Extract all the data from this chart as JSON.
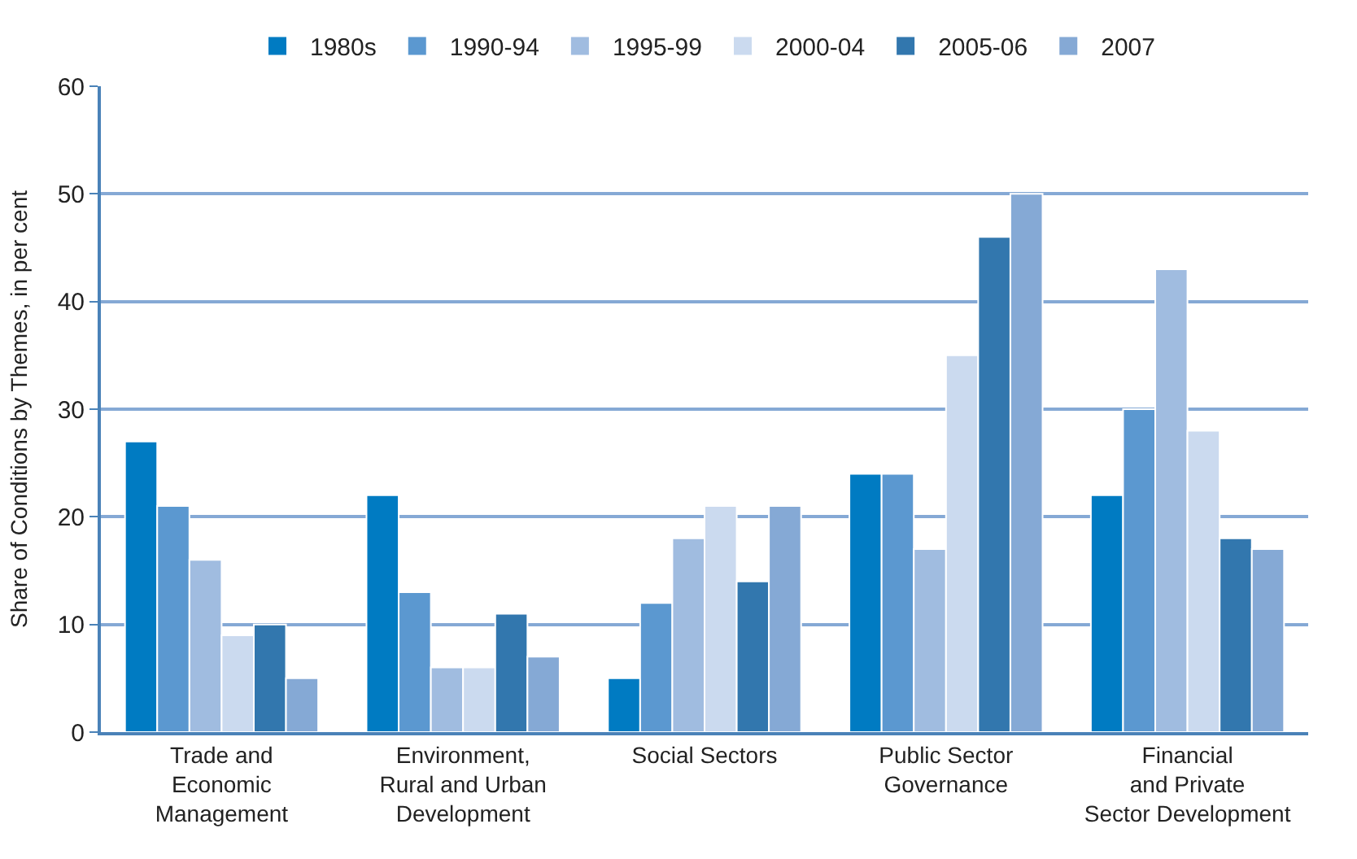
{
  "chart_data": {
    "type": "bar",
    "ylabel": "Share of Conditions by Themes, in per cent",
    "categories": [
      "Trade and\nEconomic\nManagement",
      "Environment,\nRural and Urban\nDevelopment",
      "Social Sectors",
      "Public Sector\nGovernance",
      "Financial\nand Private\nSector Development"
    ],
    "series": [
      {
        "name": "1980s",
        "color": "#007bc2",
        "values": [
          27,
          22,
          5,
          24,
          22
        ]
      },
      {
        "name": "1990-94",
        "color": "#5b98d0",
        "values": [
          21,
          13,
          12,
          24,
          30
        ]
      },
      {
        "name": "1995-99",
        "color": "#a0bce0",
        "values": [
          16,
          6,
          18,
          17,
          43
        ]
      },
      {
        "name": "2000-04",
        "color": "#cbdaef",
        "values": [
          9,
          6,
          21,
          35,
          28
        ]
      },
      {
        "name": "2005-06",
        "color": "#3277ae",
        "values": [
          10,
          11,
          14,
          46,
          18
        ]
      },
      {
        "name": "2007",
        "color": "#85a9d5",
        "values": [
          5,
          7,
          21,
          50,
          17
        ]
      }
    ],
    "ylim": [
      0,
      60
    ],
    "yticks": [
      0,
      10,
      20,
      30,
      40,
      50,
      60
    ],
    "grid": "y",
    "legend": "top"
  }
}
